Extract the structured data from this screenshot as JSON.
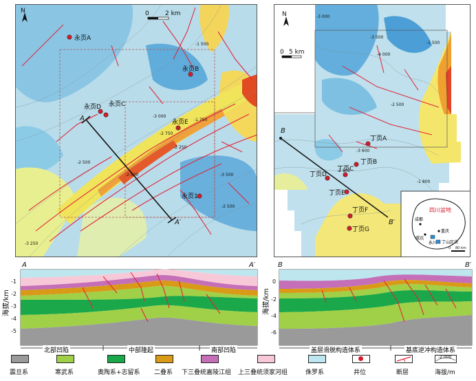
{
  "colors": {
    "sinian": "#9a9a9a",
    "cambrian": "#9fd047",
    "ordovician_silurian": "#1aa84a",
    "permian": "#d99a17",
    "jialingjiang": "#c46fb8",
    "xujiahe": "#f7c9d8",
    "jurassic": "#bde6ee",
    "well": "#d7192a",
    "fault": "#e0263b"
  },
  "map_left": {
    "north": "N",
    "scale_start": "0",
    "scale_label": "2 km",
    "wells": [
      "永页A",
      "永页B",
      "永页C",
      "永页D",
      "永页E",
      "永页1"
    ],
    "section_start": "A",
    "section_end": "A′",
    "contours": [
      "-2 500",
      "-3 000",
      "-2 250",
      "-2 000",
      "-1 750",
      "-3 500",
      "-2 750",
      "-1 500",
      "-2 500",
      "-3 250"
    ]
  },
  "map_right": {
    "north": "N",
    "scale_start": "0",
    "scale_label": "5 km",
    "wells": [
      "丁页A",
      "丁页B",
      "丁页C",
      "丁页D",
      "丁页E",
      "丁页F",
      "丁页G"
    ],
    "section_start": "B",
    "section_end": "B′",
    "contours": [
      "-3 000",
      "-3 500",
      "-2 500",
      "-1 500",
      "-2 800",
      "-3 600",
      "-1 800",
      "-4 000"
    ],
    "inset": {
      "basin": "四川盆地",
      "cities": [
        "成都",
        "重庆",
        "威远",
        "永川",
        "丁山区块"
      ],
      "scale_start": "0",
      "scale_label": "80 km"
    }
  },
  "section_left": {
    "start": "A",
    "end": "A′",
    "ylabel": "海拔/km",
    "yticks": [
      "-1",
      "-2",
      "-3",
      "-4",
      "-5"
    ],
    "zones": [
      "北部凹陷",
      "中部隆起",
      "南部凹陷"
    ]
  },
  "section_right": {
    "start": "B",
    "end": "B′",
    "ylabel": "海拔/km",
    "yticks": [
      "0",
      "-2",
      "-4",
      "-6"
    ],
    "zones": [
      "盖层滑脱构造体系",
      "基底逆冲构造体系"
    ]
  },
  "legend": [
    {
      "label": "震旦系",
      "key": "sinian",
      "kind": "box"
    },
    {
      "label": "寒武系",
      "key": "cambrian",
      "kind": "box"
    },
    {
      "label": "奥陶系+志留系",
      "key": "ordovician_silurian",
      "kind": "box"
    },
    {
      "label": "二叠系",
      "key": "permian",
      "kind": "box"
    },
    {
      "label": "下三叠统嘉陵江组",
      "key": "jialingjiang",
      "kind": "box"
    },
    {
      "label": "上三叠统须家河组",
      "key": "xujiahe",
      "kind": "box"
    },
    {
      "label": "侏罗系",
      "key": "jurassic",
      "kind": "box"
    },
    {
      "label": "井位",
      "key": "well",
      "kind": "well"
    },
    {
      "label": "断层",
      "key": "fault",
      "kind": "fault"
    },
    {
      "label": "海拔/m",
      "key": "contour",
      "kind": "contour",
      "sample": "-2 000"
    }
  ]
}
